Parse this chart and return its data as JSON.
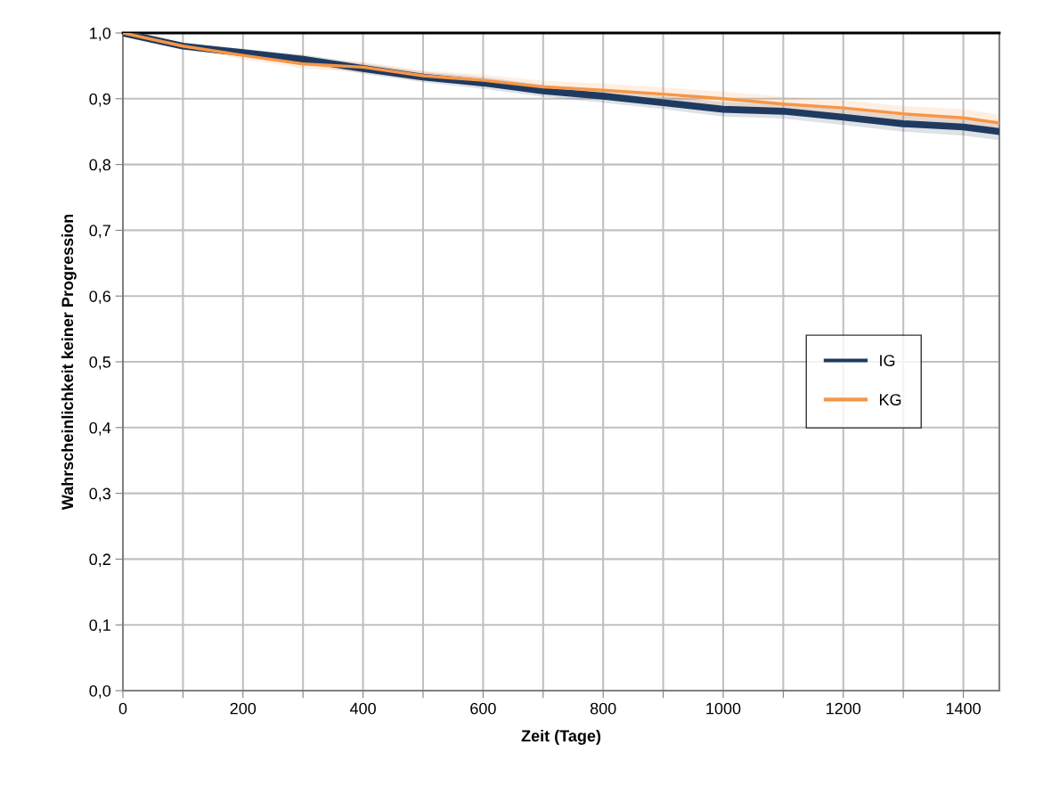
{
  "chart_data": {
    "type": "line",
    "xlabel": "Zeit (Tage)",
    "ylabel": "Wahrscheinlichkeit keiner Progression",
    "x": [
      0,
      100,
      200,
      300,
      400,
      500,
      600,
      700,
      800,
      900,
      1000,
      1100,
      1200,
      1300,
      1400,
      1460
    ],
    "series": [
      {
        "name": "IG",
        "color": "#1f3a60",
        "values": [
          1.0,
          0.98,
          0.97,
          0.96,
          0.946,
          0.933,
          0.924,
          0.912,
          0.904,
          0.894,
          0.884,
          0.881,
          0.872,
          0.862,
          0.857,
          0.85
        ],
        "lower": [
          1.0,
          0.976,
          0.964,
          0.953,
          0.938,
          0.925,
          0.915,
          0.903,
          0.894,
          0.884,
          0.873,
          0.87,
          0.86,
          0.85,
          0.844,
          0.837
        ],
        "upper": [
          1.0,
          0.984,
          0.976,
          0.967,
          0.954,
          0.941,
          0.933,
          0.921,
          0.914,
          0.904,
          0.895,
          0.892,
          0.884,
          0.874,
          0.87,
          0.863
        ]
      },
      {
        "name": "KG",
        "color": "#f79646",
        "values": [
          1.0,
          0.98,
          0.966,
          0.953,
          0.948,
          0.935,
          0.928,
          0.918,
          0.913,
          0.907,
          0.9,
          0.892,
          0.886,
          0.877,
          0.871,
          0.863
        ],
        "lower": [
          1.0,
          0.976,
          0.96,
          0.946,
          0.94,
          0.927,
          0.919,
          0.909,
          0.903,
          0.897,
          0.889,
          0.881,
          0.874,
          0.865,
          0.858,
          0.85
        ],
        "upper": [
          1.0,
          0.984,
          0.972,
          0.96,
          0.956,
          0.943,
          0.937,
          0.927,
          0.923,
          0.917,
          0.911,
          0.903,
          0.898,
          0.889,
          0.884,
          0.876
        ]
      }
    ],
    "xlim": [
      0,
      1460
    ],
    "xticks": [
      0,
      {
        "value": 100,
        "label": null
      },
      200,
      {
        "value": 300,
        "label": null
      },
      400,
      {
        "value": 500,
        "label": null
      },
      600,
      {
        "value": 700,
        "label": null
      },
      800,
      {
        "value": 900,
        "label": null
      },
      1000,
      {
        "value": 1100,
        "label": null
      },
      1200,
      {
        "value": 1300,
        "label": null
      },
      1400
    ],
    "ylim": [
      0,
      1
    ],
    "yticks": [
      {
        "value": 0,
        "label": "0,0"
      },
      {
        "value": 0.1,
        "label": "0,1"
      },
      {
        "value": 0.2,
        "label": "0,2"
      },
      {
        "value": 0.3,
        "label": "0,3"
      },
      {
        "value": 0.4,
        "label": "0,4"
      },
      {
        "value": 0.5,
        "label": "0,5"
      },
      {
        "value": 0.6,
        "label": "0,6"
      },
      {
        "value": 0.7,
        "label": "0,7"
      },
      {
        "value": 0.8,
        "label": "0,8"
      },
      {
        "value": 0.9,
        "label": "0,9"
      },
      {
        "value": 1.0,
        "label": "1,0"
      }
    ],
    "grid": true,
    "legend": "right",
    "line_style": "solid",
    "marker": "none"
  }
}
